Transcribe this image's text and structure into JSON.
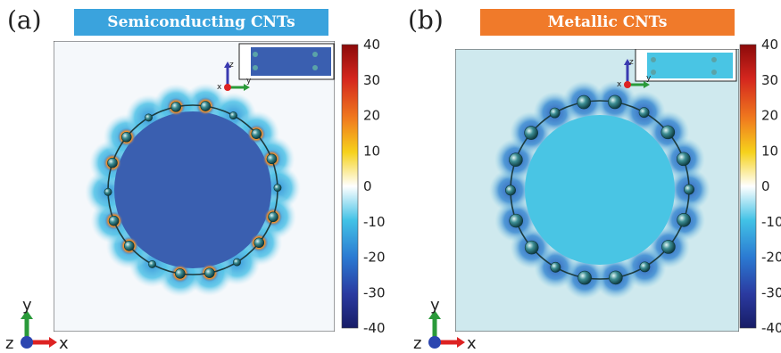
{
  "panels": [
    {
      "label": "(a)",
      "title": "Semiconducting CNTs",
      "title_color": "#3aa3dd",
      "background_color": "#f4f8fb",
      "ring_color": "#3a5fb0",
      "inner_color": "#3a5fb0",
      "atom_highlight": "hot",
      "atoms": 18
    },
    {
      "label": "(b)",
      "title": "Metallic CNTs",
      "title_color": "#f07a2a",
      "background_color": "#cfe9ee",
      "ring_color": "#3a62b4",
      "inner_color": "#49c5e4",
      "atom_highlight": "none",
      "atoms": 18
    }
  ],
  "colorbar": {
    "ticks": [
      "40",
      "30",
      "20",
      "10",
      "0",
      "-10",
      "-20",
      "-30",
      "-40"
    ],
    "stops": [
      "#8b0a0a",
      "#d4261e",
      "#f07a1e",
      "#f6d21c",
      "#ffffff",
      "#42c2e6",
      "#2b7ad2",
      "#2b3aa0",
      "#171c66"
    ]
  },
  "axes": {
    "main": {
      "y": "y",
      "z": "z",
      "x": "x"
    },
    "inset": {
      "z": "z",
      "x": "x",
      "y": "y"
    }
  }
}
